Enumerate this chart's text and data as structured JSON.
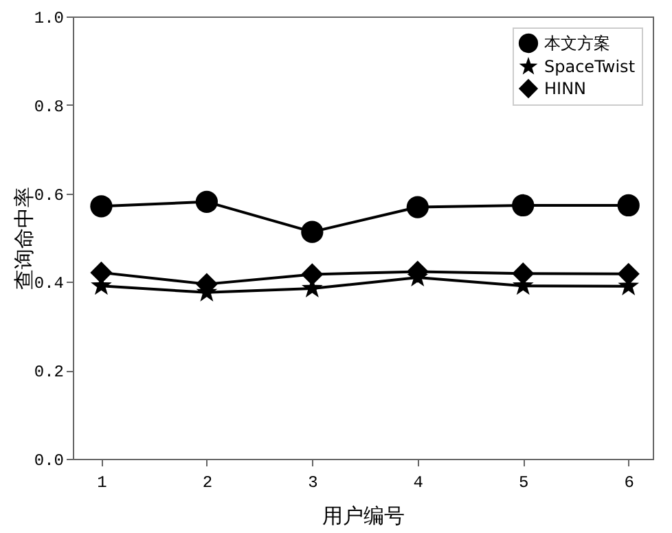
{
  "chart_data": {
    "type": "line",
    "xlabel": "用户编号",
    "ylabel": "查询命中率",
    "x": [
      1,
      2,
      3,
      4,
      5,
      6
    ],
    "series": [
      {
        "name": "本文方案",
        "color": "#000000",
        "marker": "circle",
        "values": [
          0.571,
          0.581,
          0.513,
          0.569,
          0.573,
          0.573
        ]
      },
      {
        "name": "SpaceTwist",
        "color": "#000000",
        "marker": "star",
        "values": [
          0.391,
          0.376,
          0.385,
          0.41,
          0.391,
          0.39
        ]
      },
      {
        "name": "HINN",
        "color": "#000000",
        "marker": "diamond",
        "values": [
          0.421,
          0.395,
          0.417,
          0.423,
          0.419,
          0.418
        ]
      }
    ],
    "xlim": [
      0.73,
      6.23
    ],
    "xticks": [
      1,
      2,
      3,
      4,
      5,
      6
    ],
    "ylim": [
      0,
      1
    ],
    "yticks": [
      {
        "value": 0,
        "label": "0.0"
      },
      {
        "value": 0.2,
        "label": "0.2"
      },
      {
        "value": 0.4,
        "label": "0.4"
      },
      {
        "value": 0.6,
        "label": "0.6"
      },
      {
        "value": 0.8,
        "label": "0.8"
      },
      {
        "value": 1,
        "label": "1.0"
      }
    ],
    "grid": false,
    "legend": "top right",
    "line_style": "solid"
  }
}
